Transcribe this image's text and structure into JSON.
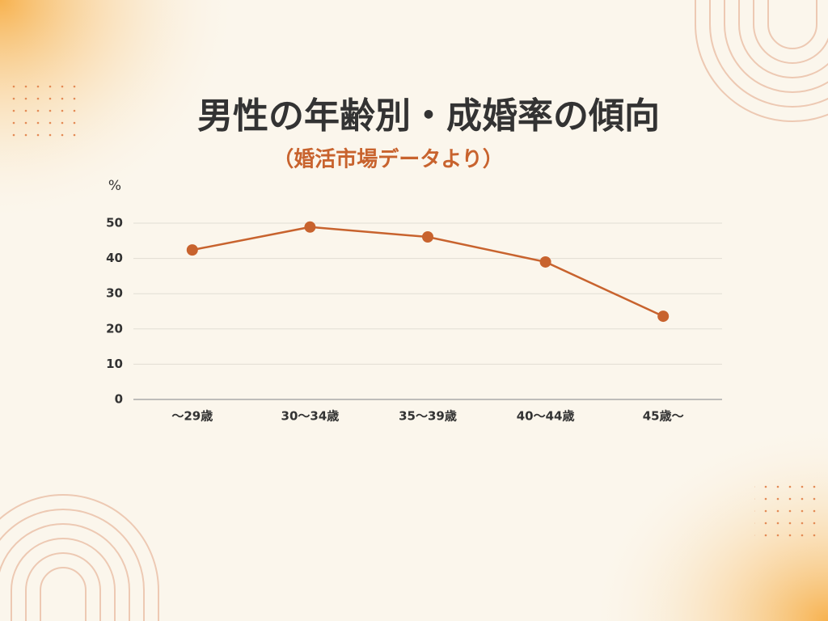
{
  "chart_data": {
    "type": "line",
    "title": "男性の年齢別・成婚率の傾向",
    "subtitle": "（婚活市場データより）",
    "y_label": "%",
    "categories": [
      "～29歳",
      "30～34歳",
      "35～39歳",
      "40～44歳",
      "45歳～"
    ],
    "values": [
      42.4,
      48.9,
      46.1,
      39.0,
      23.6
    ],
    "color": "#c8632e",
    "ylim": [
      0,
      50
    ],
    "yticks": [
      0,
      10,
      20,
      30,
      40,
      50
    ],
    "grid": true
  }
}
